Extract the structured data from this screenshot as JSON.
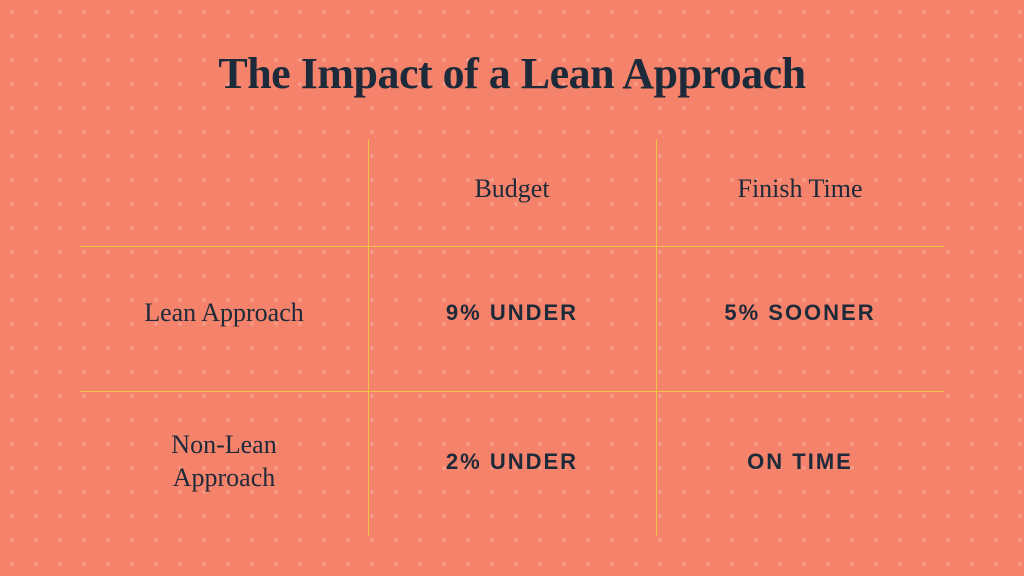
{
  "title": "The Impact of a Lean Approach",
  "title_fontsize": 44,
  "table": {
    "type": "table",
    "background_color": "#f5826a",
    "text_color": "#1d2a3a",
    "grid_color": "#f0c244",
    "dot_color": "rgba(255,255,255,0.18)",
    "columns": [
      "Budget",
      "Finish Time"
    ],
    "col_header_fontsize": 26,
    "row_header_fontsize": 26,
    "value_fontsize": 22,
    "rows": [
      {
        "label": "Lean Approach",
        "budget": "9% UNDER",
        "finish": "5% SOONER"
      },
      {
        "label": "Non-Lean Approach",
        "budget": "2% UNDER",
        "finish": "ON TIME"
      }
    ],
    "col_widths_fr": [
      1,
      1,
      1
    ],
    "row_heights": [
      "100px",
      "1fr",
      "1fr"
    ],
    "hline_positions_pct": [
      27,
      63.5
    ],
    "vline_positions_pct": [
      33.33,
      66.66
    ]
  }
}
